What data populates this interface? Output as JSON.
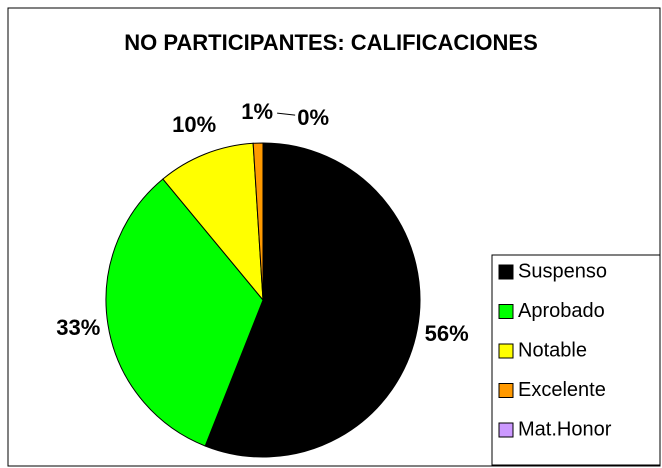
{
  "chart_data": {
    "type": "pie",
    "title": "NO PARTICIPANTES: CALIFICACIONES",
    "categories": [
      "Suspenso",
      "Aprobado",
      "Notable",
      "Excelente",
      "Mat.Honor"
    ],
    "values": [
      56,
      33,
      10,
      1,
      0
    ],
    "value_labels": [
      "56%",
      "33%",
      "10%",
      "1%",
      "0%"
    ],
    "colors": [
      "#000000",
      "#00ff00",
      "#ffff00",
      "#ff9900",
      "#cc99ff"
    ],
    "legend": "right"
  }
}
